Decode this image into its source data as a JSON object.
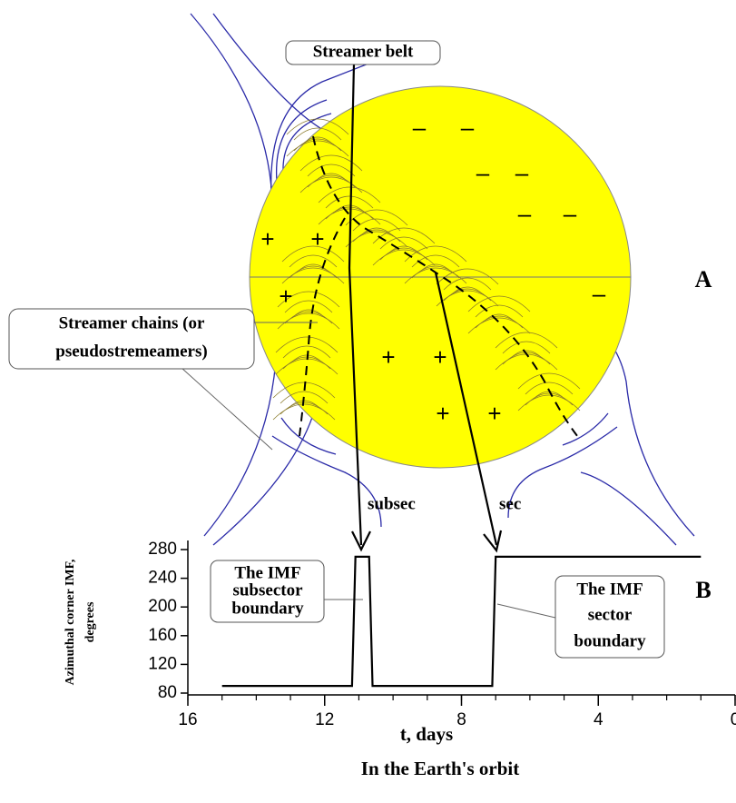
{
  "diagram": {
    "panel_a": "A",
    "panel_b": "B",
    "streamer_belt": "Streamer belt",
    "streamer_chains": [
      "Streamer chains (or",
      "pseudostremeamers)"
    ],
    "subsec": "subsec",
    "sec": "sec",
    "subsector_box": [
      "The IMF",
      "subsector",
      "boundary"
    ],
    "sector_box": [
      "The IMF",
      "sector",
      "boundary"
    ],
    "minus_signs": [
      "–",
      "–",
      "–",
      "–",
      "–",
      "–",
      "–"
    ],
    "plus_signs": [
      "+",
      "+",
      "+",
      "+",
      "+",
      "+",
      "+"
    ]
  },
  "chart_data": {
    "type": "line",
    "x": [
      15,
      11.2,
      11.1,
      10.7,
      10.6,
      7.1,
      7.0,
      1
    ],
    "values": [
      90,
      90,
      270,
      270,
      90,
      90,
      270,
      270
    ],
    "color": "#000000",
    "xlim": [
      16,
      0
    ],
    "ylim": [
      80,
      280
    ],
    "xticks": [
      16,
      12,
      8,
      4,
      0
    ],
    "yticks": [
      80,
      120,
      160,
      200,
      240,
      280
    ],
    "ylabel": [
      "Azimuthal corner IMF,",
      "degrees"
    ],
    "xlabel": "t, days",
    "subtitle": "In the Earth's orbit"
  }
}
